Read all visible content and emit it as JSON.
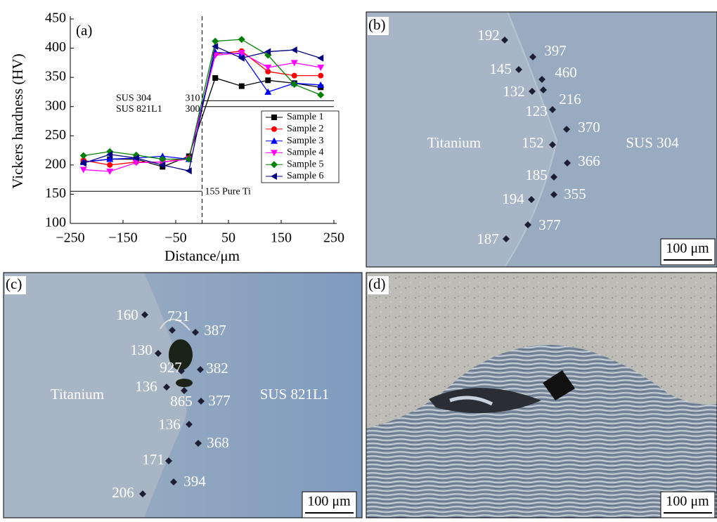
{
  "chart_data": {
    "type": "line",
    "panel_label": "(a)",
    "x_label": "Distance/μm",
    "y_label": "Vickers hardness (HV)",
    "x": [
      -225,
      -175,
      -125,
      -75,
      -25,
      25,
      75,
      125,
      175,
      225
    ],
    "series": [
      {
        "name": "Sample 1",
        "color": "#000000",
        "marker": "square",
        "values": [
          205,
          210,
          210,
          197,
          215,
          349,
          335,
          345,
          340,
          333
        ]
      },
      {
        "name": "Sample 2",
        "color": "#ff0000",
        "marker": "circle",
        "values": [
          208,
          200,
          205,
          205,
          212,
          390,
          395,
          360,
          353,
          353
        ]
      },
      {
        "name": "Sample 3",
        "color": "#0000ff",
        "marker": "triangle-up",
        "values": [
          205,
          210,
          212,
          215,
          210,
          393,
          390,
          325,
          340,
          337
        ]
      },
      {
        "name": "Sample 4",
        "color": "#ff00ff",
        "marker": "triangle-down",
        "values": [
          192,
          189,
          204,
          205,
          210,
          388,
          392,
          367,
          375,
          367
        ]
      },
      {
        "name": "Sample 5",
        "color": "#008000",
        "marker": "diamond",
        "values": [
          216,
          223,
          217,
          210,
          210,
          412,
          415,
          388,
          338,
          320
        ]
      },
      {
        "name": "Sample 6",
        "color": "#000080",
        "marker": "triangle-left",
        "values": [
          203,
          218,
          212,
          200,
          190,
          403,
          383,
          394,
          397,
          383
        ]
      }
    ],
    "reference_lines": [
      {
        "name": "SUS 304",
        "label": "310",
        "value": 310,
        "from": 0,
        "to": 250
      },
      {
        "name": "SUS 821L1",
        "label": "300",
        "value": 300,
        "from": 0,
        "to": 250
      },
      {
        "label": "155 Pure Ti",
        "value": 155,
        "from": -250,
        "to": 0
      }
    ],
    "divider_x": 0,
    "xlim": [
      -250,
      250
    ],
    "xticks": [
      {
        "value": -250,
        "label": "−250"
      },
      {
        "value": -150,
        "label": "−150"
      },
      {
        "value": -50,
        "label": "−50"
      },
      50,
      150,
      250
    ],
    "ylim": [
      100,
      450
    ],
    "yticks": [
      100,
      150,
      200,
      250,
      300,
      350,
      400,
      450
    ]
  },
  "panels": [
    {
      "label": "(b)",
      "materials": [
        "Titanium",
        "SUS 304"
      ],
      "hardness": [
        192,
        397,
        145,
        460,
        132,
        216,
        123,
        370,
        152,
        366,
        185,
        194,
        355,
        377,
        187
      ],
      "scale_bar": "100 μm"
    },
    {
      "label": "(c)",
      "materials": [
        "Titanium",
        "SUS 821L1"
      ],
      "hardness": [
        160,
        721,
        387,
        130,
        927,
        382,
        136,
        865,
        377,
        136,
        368,
        171,
        394,
        206
      ],
      "scale_bar": "100 μm"
    },
    {
      "label": "(d)",
      "scale_bar": "100 μm"
    }
  ]
}
